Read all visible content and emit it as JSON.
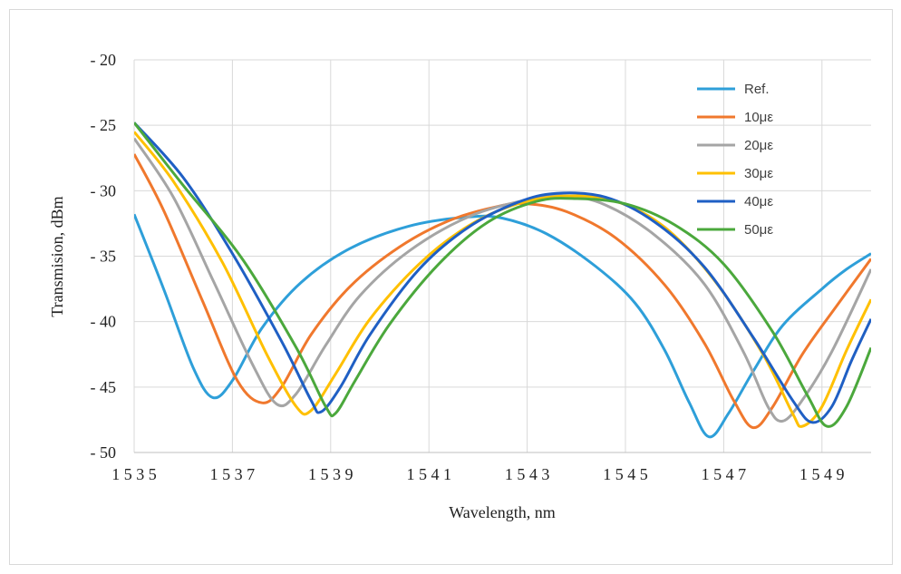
{
  "chart_data": {
    "type": "line",
    "title": "",
    "xlabel": "Wavelength, nm",
    "ylabel": "Transmision, dBm",
    "xlim": [
      1535,
      1550
    ],
    "ylim": [
      -50,
      -20
    ],
    "x_ticks": [
      1535,
      1537,
      1539,
      1541,
      1543,
      1545,
      1547,
      1549
    ],
    "y_ticks": [
      -20,
      -25,
      -30,
      -35,
      -40,
      -45,
      -50
    ],
    "x_tick_labels": [
      "1535",
      "1537",
      "1539",
      "1541",
      "1543",
      "1545",
      "1547",
      "1549"
    ],
    "y_tick_labels": [
      "-20",
      "-25",
      "-30",
      "-35",
      "-40",
      "-45",
      "-50"
    ],
    "grid": "vertical and horizontal major",
    "legend_position": "top-right",
    "series": [
      {
        "name": "Ref.",
        "color": "#2E9FD9",
        "points": [
          [
            1535,
            -31.8
          ],
          [
            1535.6,
            -37.5
          ],
          [
            1536.2,
            -43.5
          ],
          [
            1536.6,
            -45.8
          ],
          [
            1537.0,
            -44.5
          ],
          [
            1537.6,
            -40.5
          ],
          [
            1538.4,
            -37.0
          ],
          [
            1539.4,
            -34.4
          ],
          [
            1540.6,
            -32.7
          ],
          [
            1541.8,
            -32.0
          ],
          [
            1542.5,
            -32.1
          ],
          [
            1543.4,
            -33.3
          ],
          [
            1544.4,
            -35.8
          ],
          [
            1545.2,
            -38.6
          ],
          [
            1545.8,
            -42.2
          ],
          [
            1546.3,
            -46.2
          ],
          [
            1546.7,
            -48.8
          ],
          [
            1547.1,
            -47.0
          ],
          [
            1547.6,
            -43.8
          ],
          [
            1548.2,
            -40.3
          ],
          [
            1549.0,
            -37.5
          ],
          [
            1549.5,
            -36.0
          ],
          [
            1550.0,
            -34.8
          ]
        ]
      },
      {
        "name": "10με",
        "color": "#F0782D",
        "points": [
          [
            1535,
            -27.2
          ],
          [
            1535.6,
            -31.5
          ],
          [
            1536.4,
            -38.5
          ],
          [
            1537.1,
            -44.5
          ],
          [
            1537.6,
            -46.2
          ],
          [
            1538.0,
            -45.0
          ],
          [
            1538.6,
            -41.0
          ],
          [
            1539.4,
            -37.3
          ],
          [
            1540.4,
            -34.3
          ],
          [
            1541.4,
            -32.3
          ],
          [
            1542.4,
            -31.2
          ],
          [
            1543.0,
            -31.0
          ],
          [
            1543.8,
            -31.6
          ],
          [
            1544.8,
            -33.6
          ],
          [
            1545.8,
            -37.2
          ],
          [
            1546.6,
            -41.6
          ],
          [
            1547.2,
            -46.0
          ],
          [
            1547.6,
            -48.1
          ],
          [
            1548.0,
            -46.5
          ],
          [
            1548.6,
            -42.5
          ],
          [
            1549.3,
            -38.8
          ],
          [
            1550.0,
            -35.2
          ]
        ]
      },
      {
        "name": "20με",
        "color": "#A5A5A5",
        "points": [
          [
            1535,
            -26.0
          ],
          [
            1535.8,
            -30.5
          ],
          [
            1536.6,
            -36.8
          ],
          [
            1537.4,
            -43.2
          ],
          [
            1537.9,
            -46.3
          ],
          [
            1538.3,
            -45.5
          ],
          [
            1538.9,
            -41.8
          ],
          [
            1539.6,
            -38.0
          ],
          [
            1540.6,
            -34.6
          ],
          [
            1541.8,
            -32.0
          ],
          [
            1543.0,
            -30.7
          ],
          [
            1543.8,
            -30.4
          ],
          [
            1544.6,
            -31.1
          ],
          [
            1545.6,
            -33.4
          ],
          [
            1546.6,
            -37.1
          ],
          [
            1547.4,
            -42.3
          ],
          [
            1547.9,
            -46.5
          ],
          [
            1548.2,
            -47.6
          ],
          [
            1548.6,
            -46.0
          ],
          [
            1549.2,
            -42.3
          ],
          [
            1550.0,
            -36.0
          ]
        ]
      },
      {
        "name": "30με",
        "color": "#FFC000",
        "points": [
          [
            1535,
            -25.5
          ],
          [
            1535.8,
            -29.3
          ],
          [
            1536.8,
            -35.5
          ],
          [
            1537.7,
            -42.5
          ],
          [
            1538.3,
            -46.5
          ],
          [
            1538.6,
            -46.8
          ],
          [
            1539.1,
            -44.0
          ],
          [
            1539.8,
            -39.8
          ],
          [
            1540.8,
            -35.6
          ],
          [
            1541.8,
            -32.7
          ],
          [
            1542.8,
            -31.0
          ],
          [
            1543.8,
            -30.4
          ],
          [
            1544.8,
            -30.8
          ],
          [
            1545.8,
            -32.8
          ],
          [
            1546.8,
            -36.8
          ],
          [
            1547.8,
            -42.5
          ],
          [
            1548.4,
            -47.0
          ],
          [
            1548.6,
            -48.0
          ],
          [
            1549.0,
            -46.5
          ],
          [
            1549.5,
            -42.2
          ],
          [
            1550.0,
            -38.3
          ]
        ]
      },
      {
        "name": "40με",
        "color": "#1F5FC4",
        "points": [
          [
            1535,
            -24.8
          ],
          [
            1536.0,
            -29.0
          ],
          [
            1537.0,
            -34.8
          ],
          [
            1538.0,
            -41.5
          ],
          [
            1538.6,
            -46.0
          ],
          [
            1538.8,
            -46.9
          ],
          [
            1539.2,
            -45.0
          ],
          [
            1539.8,
            -41.0
          ],
          [
            1540.8,
            -36.0
          ],
          [
            1541.8,
            -32.8
          ],
          [
            1542.8,
            -30.9
          ],
          [
            1543.6,
            -30.2
          ],
          [
            1544.6,
            -30.5
          ],
          [
            1545.6,
            -32.4
          ],
          [
            1546.6,
            -35.8
          ],
          [
            1547.6,
            -41.2
          ],
          [
            1548.4,
            -46.0
          ],
          [
            1548.8,
            -47.7
          ],
          [
            1549.2,
            -46.5
          ],
          [
            1549.6,
            -43.0
          ],
          [
            1550.0,
            -39.8
          ]
        ]
      },
      {
        "name": "50με",
        "color": "#4BA83C",
        "points": [
          [
            1535,
            -24.8
          ],
          [
            1536.0,
            -29.6
          ],
          [
            1537.2,
            -35.2
          ],
          [
            1538.3,
            -42.0
          ],
          [
            1538.9,
            -46.5
          ],
          [
            1539.1,
            -47.0
          ],
          [
            1539.5,
            -44.5
          ],
          [
            1540.2,
            -40.2
          ],
          [
            1541.2,
            -35.6
          ],
          [
            1542.2,
            -32.4
          ],
          [
            1543.2,
            -30.8
          ],
          [
            1544.0,
            -30.6
          ],
          [
            1545.0,
            -31.0
          ],
          [
            1546.0,
            -32.6
          ],
          [
            1547.0,
            -35.6
          ],
          [
            1548.0,
            -40.8
          ],
          [
            1548.7,
            -45.6
          ],
          [
            1549.1,
            -48.0
          ],
          [
            1549.5,
            -46.5
          ],
          [
            1550.0,
            -42.0
          ]
        ]
      }
    ]
  }
}
